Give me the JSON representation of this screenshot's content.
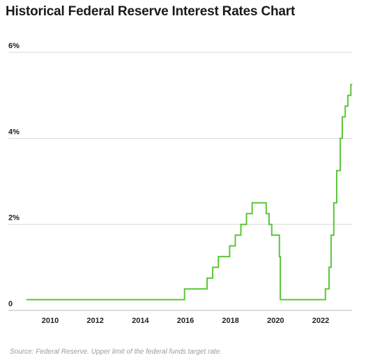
{
  "header": {
    "title": "Historical Federal Reserve Interest Rates Chart"
  },
  "footer": {
    "source": "Source: Federal Reserve. Upper limit of the federal funds target rate."
  },
  "colors": {
    "line": "#5cc53a",
    "grid": "#d9d9d9",
    "axis": "#bdbdbd"
  },
  "chart_data": {
    "type": "line",
    "title": "Historical Federal Reserve Interest Rates Chart",
    "xlabel": "",
    "ylabel": "",
    "xlim": [
      2008.5,
      2023.4
    ],
    "ylim": [
      0,
      6
    ],
    "x_ticks": [
      2010,
      2012,
      2014,
      2016,
      2018,
      2020,
      2022
    ],
    "x_tick_labels": [
      "2010",
      "2012",
      "2014",
      "2016",
      "2018",
      "2020",
      "2022"
    ],
    "y_ticks": [
      0,
      2,
      4,
      6
    ],
    "y_tick_labels": [
      "0",
      "2%",
      "4%",
      "6%"
    ],
    "grid": true,
    "step": true,
    "series": [
      {
        "x": [
          2008.96,
          2015.96,
          2016.96,
          2017.21,
          2017.46,
          2017.96,
          2018.21,
          2018.46,
          2018.71,
          2018.96,
          2019.58,
          2019.71,
          2019.83,
          2020.17,
          2020.21,
          2022.21,
          2022.37,
          2022.46,
          2022.58,
          2022.71,
          2022.87,
          2022.96,
          2023.09,
          2023.21,
          2023.34
        ],
        "y": [
          0.25,
          0.5,
          0.75,
          1.0,
          1.25,
          1.5,
          1.75,
          2.0,
          2.25,
          2.5,
          2.25,
          2.0,
          1.75,
          1.25,
          0.25,
          0.5,
          1.0,
          1.75,
          2.5,
          3.25,
          4.0,
          4.5,
          4.75,
          5.0,
          5.25
        ]
      }
    ]
  }
}
